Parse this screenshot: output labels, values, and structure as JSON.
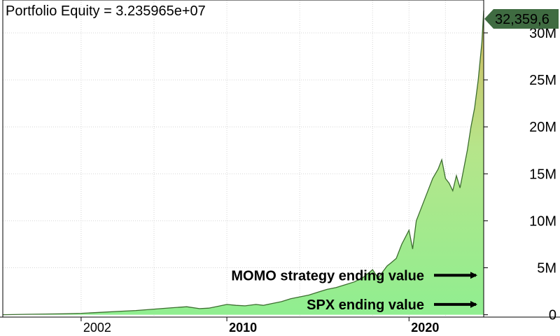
{
  "chart_data": {
    "type": "area",
    "title": "Portfolio Equity = 3.235965e+07",
    "last_value_label": "32,359,6",
    "xlim": [
      1997.7,
      2024.1
    ],
    "ylim": [
      -250000,
      33500000
    ],
    "yticks": [
      0,
      5000000,
      10000000,
      15000000,
      20000000,
      25000000,
      30000000
    ],
    "ytick_labels": [
      "0",
      "5M",
      "10M",
      "15M",
      "20M",
      "25M",
      "30M"
    ],
    "xticks": [
      {
        "year": 2002,
        "label": "2002",
        "major": false
      },
      {
        "year": 2010,
        "label": "2010",
        "major": true
      },
      {
        "year": 2020,
        "label": "2020",
        "major": true
      }
    ],
    "x_gridlines": [
      2002,
      2006,
      2010,
      2014,
      2018,
      2020,
      2022
    ],
    "grid": true,
    "series": [
      {
        "x": [
          1997.7,
          1999,
          2000,
          2001,
          2002,
          2003,
          2004,
          2005,
          2006,
          2007,
          2007.8,
          2008.5,
          2009,
          2009.5,
          2010,
          2010.5,
          2011,
          2011.6,
          2012,
          2012.5,
          2013,
          2013.5,
          2014,
          2014.5,
          2015,
          2015.5,
          2016,
          2016.5,
          2017,
          2017.5,
          2018,
          2018.3,
          2018.8,
          2019,
          2019.3,
          2019.6,
          2020,
          2020.2,
          2020.4,
          2020.7,
          2021,
          2021.3,
          2021.6,
          2021.8,
          2022.0,
          2022.2,
          2022.4,
          2022.6,
          2022.8,
          2023.0,
          2023.2,
          2023.4,
          2023.6,
          2023.8,
          2024.0,
          2024.1
        ],
        "y": [
          0,
          50000,
          80000,
          100000,
          150000,
          250000,
          350000,
          450000,
          600000,
          750000,
          850000,
          650000,
          700000,
          900000,
          1100000,
          1000000,
          950000,
          1100000,
          1000000,
          1200000,
          1400000,
          1700000,
          1900000,
          2100000,
          2400000,
          2700000,
          2900000,
          3200000,
          3500000,
          4000000,
          4800000,
          3900000,
          5200000,
          5500000,
          6000000,
          7500000,
          9000000,
          7000000,
          10000000,
          11500000,
          13000000,
          14500000,
          15500000,
          16500000,
          14500000,
          14000000,
          13200000,
          14800000,
          13500000,
          15500000,
          17500000,
          20000000,
          22000000,
          25000000,
          29000000,
          32359650
        ]
      }
    ],
    "annotations": [
      {
        "text": "MOMO strategy ending value",
        "y": 4200000
      },
      {
        "text": "SPX ending value",
        "y": 1100000
      }
    ],
    "colors": {
      "line": "#3c6e2f",
      "fill_bottom": "#90ee90",
      "fill_top": "#d2b85e",
      "grid": "#d6d6d6",
      "badge": "#3f6b41",
      "arrow": "#000000"
    }
  }
}
